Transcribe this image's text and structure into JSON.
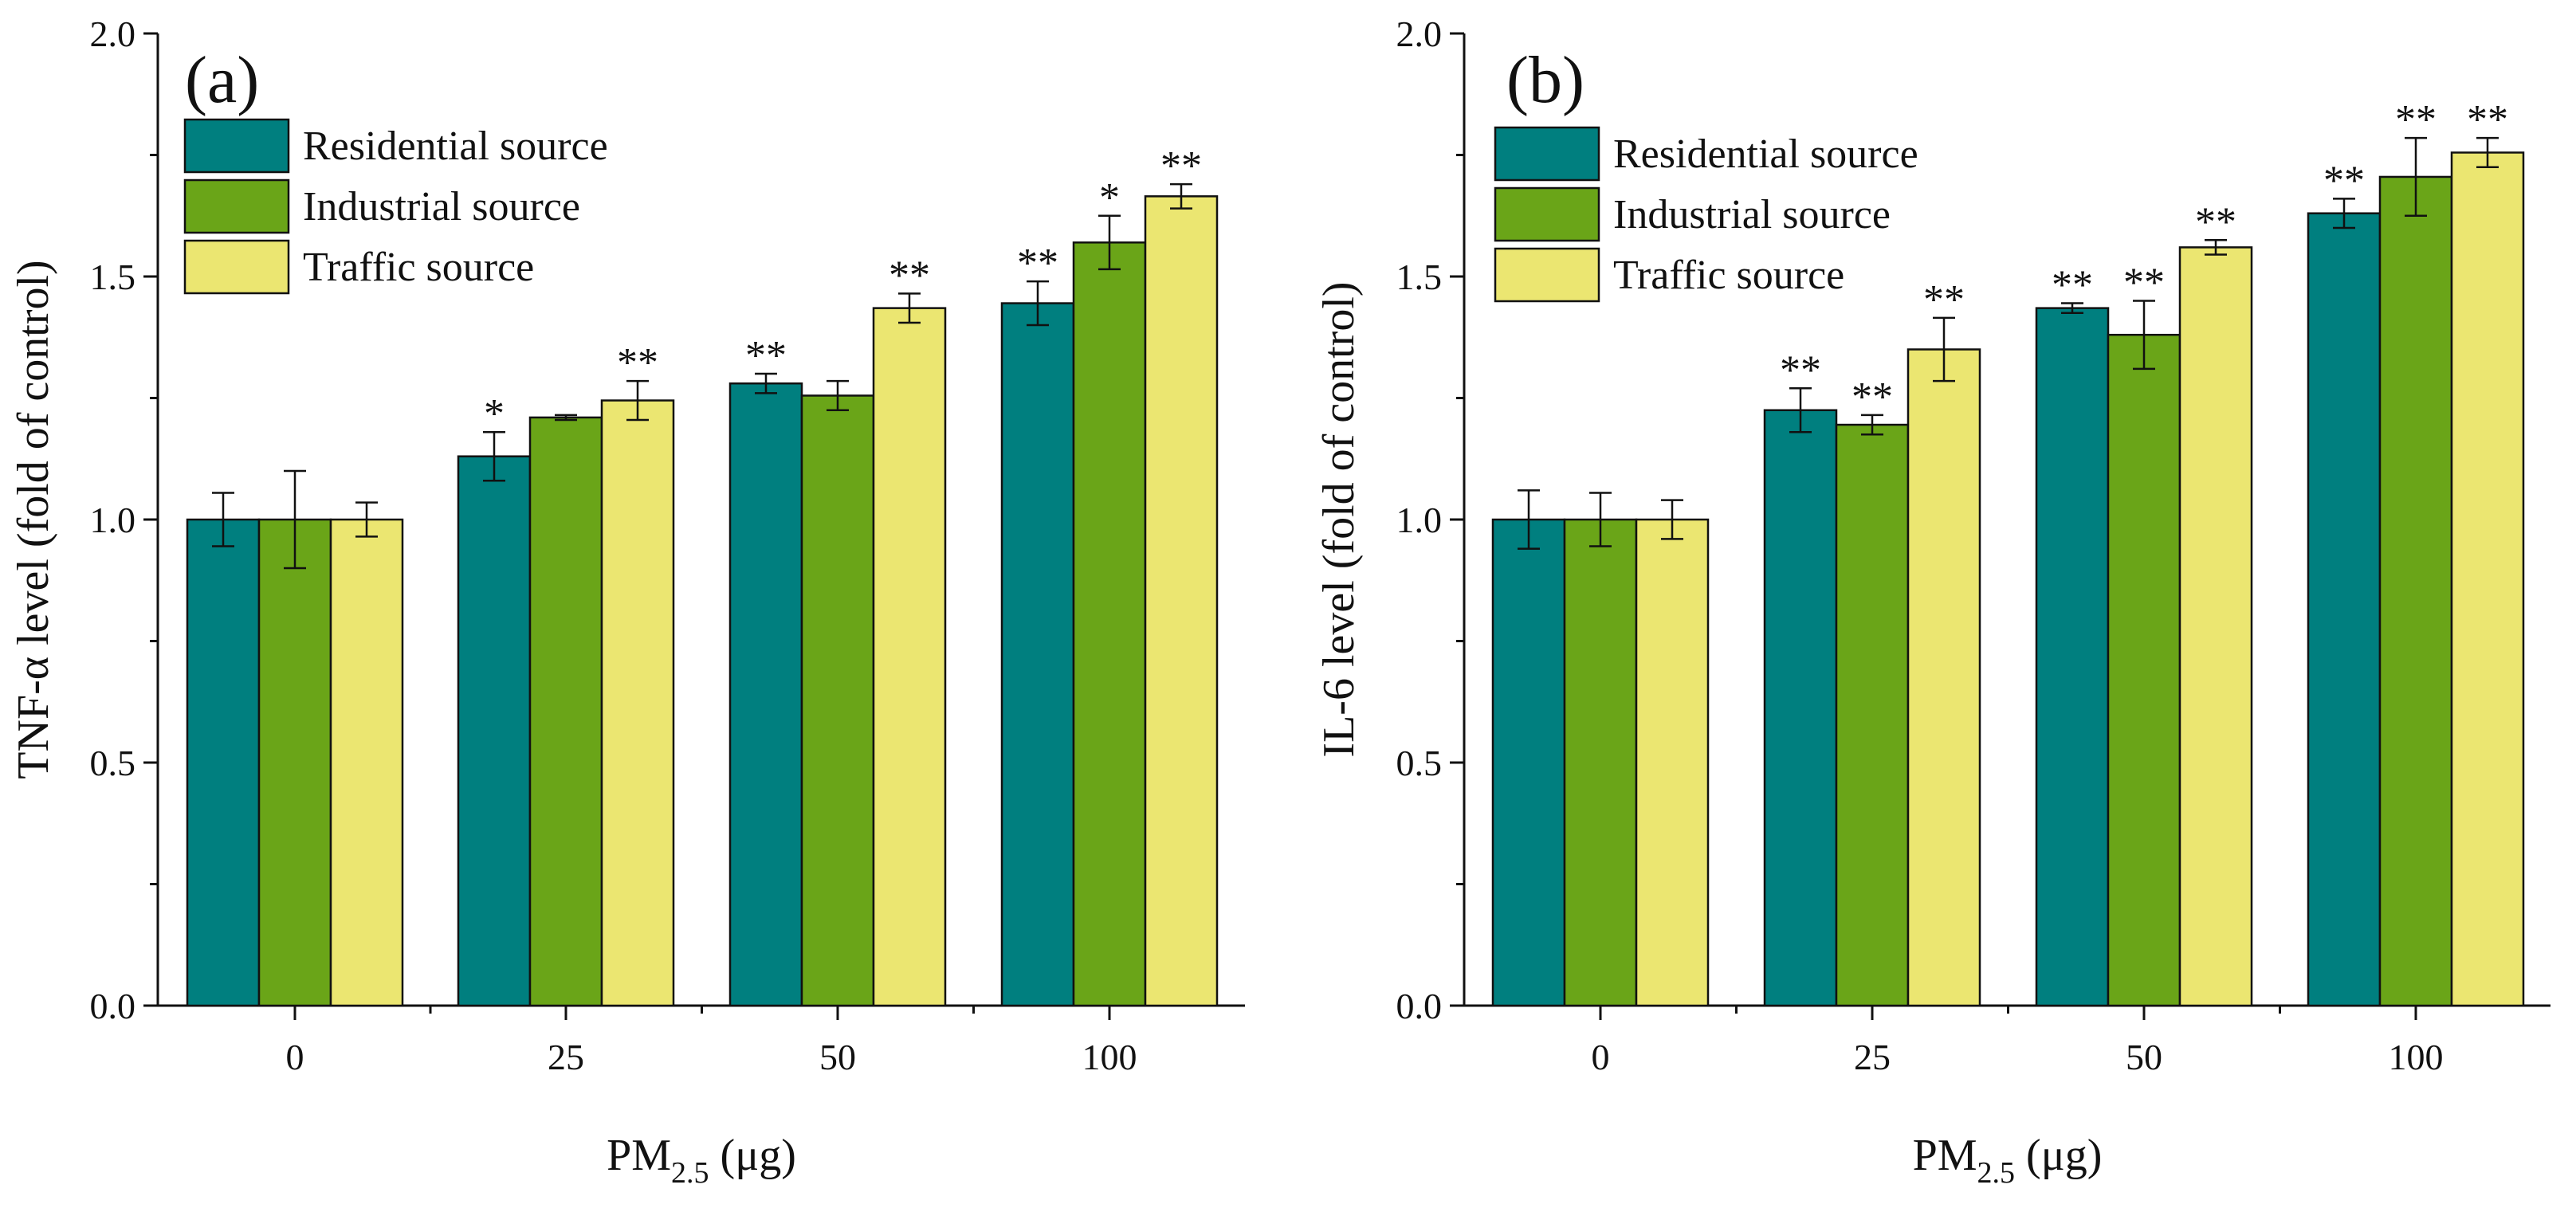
{
  "chart_data": [
    {
      "type": "bar",
      "panel_label": "(a)",
      "title": "",
      "xlabel": {
        "prefix": "PM",
        "subscript": "2.5",
        "suffix": " (μg)"
      },
      "ylabel": "TNF-α level (fold of control)",
      "ylim": [
        0,
        2.0
      ],
      "yticks": [
        "0.0",
        "0.5",
        "1.0",
        "1.5",
        "2.0"
      ],
      "categories": [
        "0",
        "25",
        "50",
        "100"
      ],
      "legend_position": "top-left",
      "series": [
        {
          "name": "Residential source",
          "color": "#007f7f",
          "values": [
            1.0,
            1.13,
            1.28,
            1.445
          ],
          "errors": [
            0.055,
            0.05,
            0.02,
            0.045
          ],
          "significance": [
            "",
            "*",
            "**",
            "**"
          ]
        },
        {
          "name": "Industrial source",
          "color": "#6aa518",
          "values": [
            1.0,
            1.21,
            1.255,
            1.57
          ],
          "errors": [
            0.1,
            0.005,
            0.03,
            0.055
          ],
          "significance": [
            "",
            "",
            "",
            "*"
          ]
        },
        {
          "name": "Traffic source",
          "color": "#ebe671",
          "values": [
            1.0,
            1.245,
            1.435,
            1.665
          ],
          "errors": [
            0.035,
            0.04,
            0.03,
            0.025
          ],
          "significance": [
            "",
            "**",
            "**",
            "**"
          ]
        }
      ]
    },
    {
      "type": "bar",
      "panel_label": "(b)",
      "title": "",
      "xlabel": {
        "prefix": "PM",
        "subscript": "2.5",
        "suffix": " (μg)"
      },
      "ylabel": "IL-6 level (fold of control)",
      "ylim": [
        0,
        2.0
      ],
      "yticks": [
        "0.0",
        "0.5",
        "1.0",
        "1.5",
        "2.0"
      ],
      "categories": [
        "0",
        "25",
        "50",
        "100"
      ],
      "legend_position": "top-left",
      "series": [
        {
          "name": "Residential source",
          "color": "#007f7f",
          "values": [
            1.0,
            1.225,
            1.435,
            1.63
          ],
          "errors": [
            0.06,
            0.045,
            0.01,
            0.03
          ],
          "significance": [
            "",
            "**",
            "**",
            "**"
          ]
        },
        {
          "name": "Industrial source",
          "color": "#6aa518",
          "values": [
            1.0,
            1.195,
            1.38,
            1.705
          ],
          "errors": [
            0.055,
            0.02,
            0.07,
            0.08
          ],
          "significance": [
            "",
            "**",
            "**",
            "**"
          ]
        },
        {
          "name": "Traffic source",
          "color": "#ebe671",
          "values": [
            1.0,
            1.35,
            1.56,
            1.755
          ],
          "errors": [
            0.04,
            0.065,
            0.015,
            0.03
          ],
          "significance": [
            "",
            "**",
            "**",
            "**"
          ]
        }
      ]
    }
  ]
}
